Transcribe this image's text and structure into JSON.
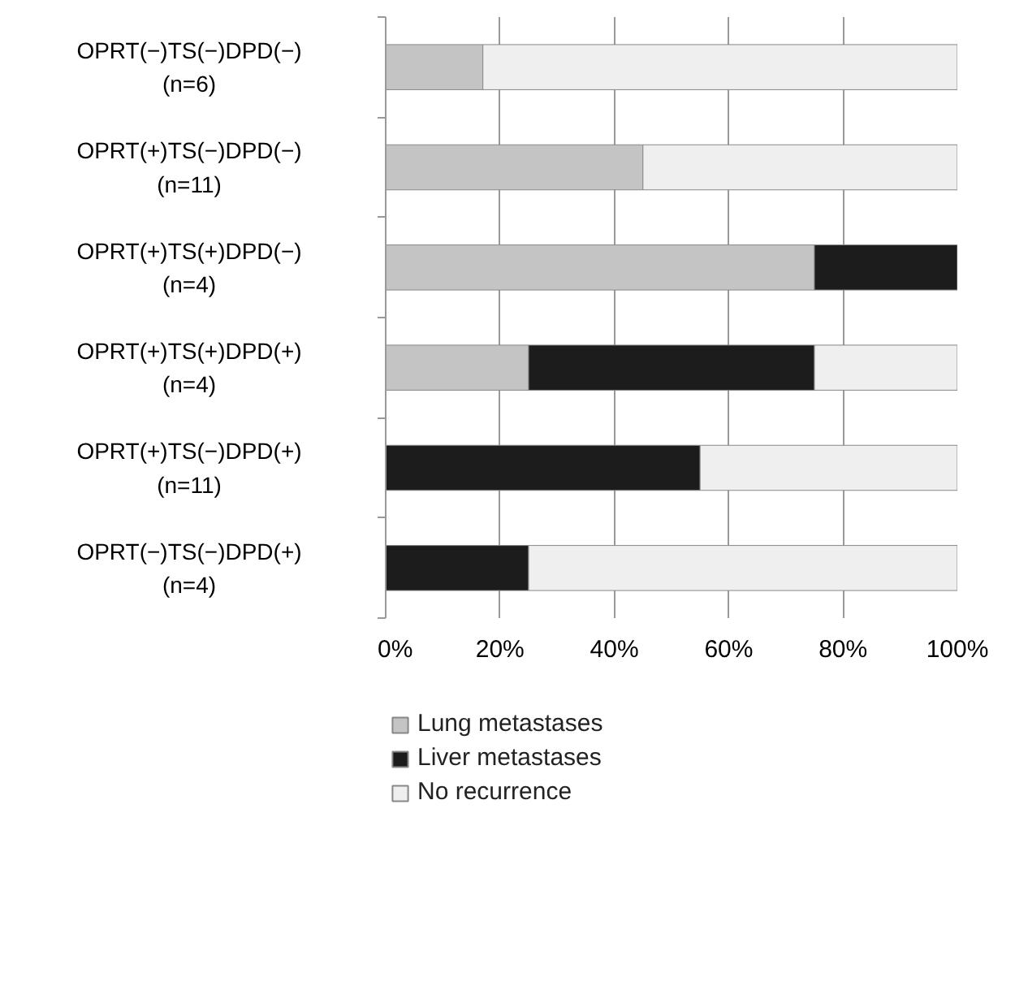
{
  "chart_data": {
    "type": "bar",
    "orientation": "horizontal",
    "stacked": true,
    "categories": [
      "OPRT(−)TS(−)DPD(−)\n(n=6)",
      "OPRT(+)TS(−)DPD(−)\n(n=11)",
      "OPRT(+)TS(+)DPD(−)\n(n=4)",
      "OPRT(+)TS(+)DPD(+)\n(n=4)",
      "OPRT(+)TS(−)DPD(+)\n(n=11)",
      "OPRT(−)TS(−)DPD(+)\n(n=4)"
    ],
    "series": [
      {
        "name": "Lung metastases",
        "color": "#c4c4c4",
        "values": [
          17,
          45,
          75,
          25,
          0,
          0
        ]
      },
      {
        "name": "Liver metastases",
        "color": "#1c1c1c",
        "values": [
          0,
          0,
          25,
          50,
          55,
          25
        ]
      },
      {
        "name": "No recurrence",
        "color": "#efefef",
        "values": [
          83,
          55,
          0,
          25,
          45,
          75
        ]
      }
    ],
    "xlim": [
      0,
      100
    ],
    "xticks": [
      {
        "value": 0,
        "label": "0%"
      },
      {
        "value": 20,
        "label": "20%"
      },
      {
        "value": 40,
        "label": "40%"
      },
      {
        "value": 60,
        "label": "60%"
      },
      {
        "value": 80,
        "label": "80%"
      },
      {
        "value": 100,
        "label": "100%"
      }
    ],
    "grid": "x",
    "legend": "bottom"
  }
}
